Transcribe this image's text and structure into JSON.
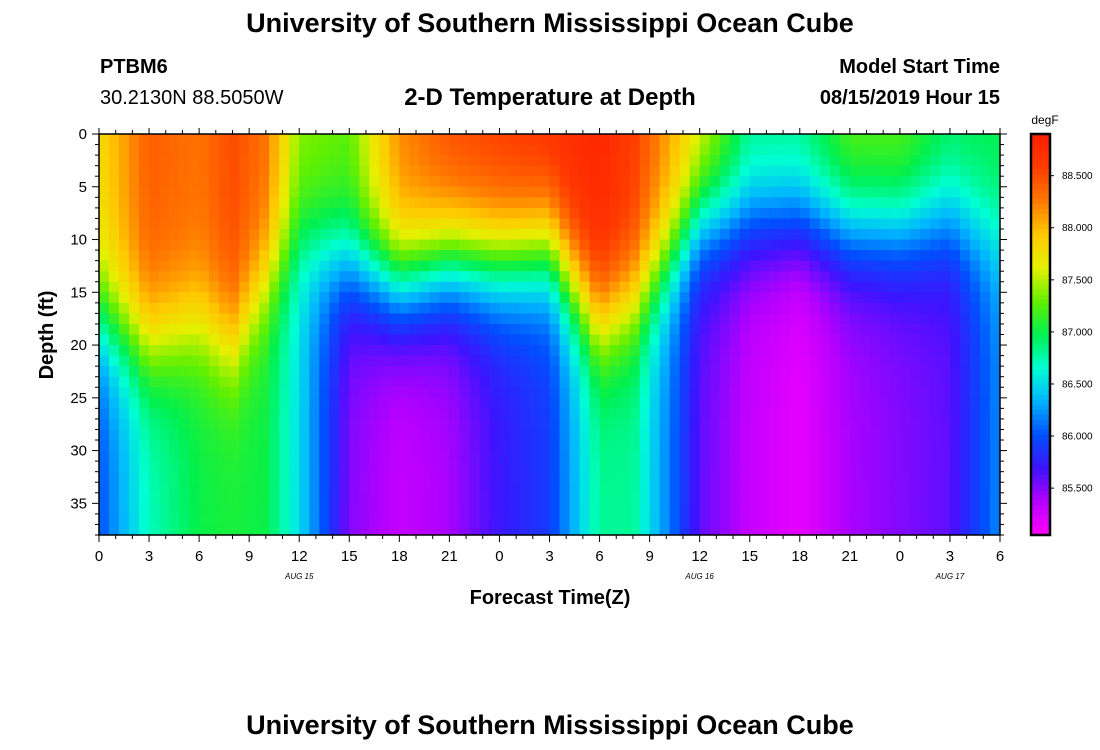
{
  "header": {
    "title": "University of Southern Mississippi Ocean Cube",
    "station_id": "PTBM6",
    "station_coords": "30.2130N 88.5050W",
    "model_start_label": "Model Start Time",
    "model_start_value": "08/15/2019 Hour 15"
  },
  "footer": {
    "title": "University of Southern Mississippi Ocean Cube"
  },
  "chart_data": {
    "type": "heatmap",
    "title": "2-D Temperature at Depth",
    "xlabel": "Forecast Time(Z)",
    "ylabel": "Depth (ft)",
    "x_ticks": [
      "0",
      "3",
      "6",
      "9",
      "12",
      "15",
      "18",
      "21",
      "0",
      "3",
      "6",
      "9",
      "12",
      "15",
      "18",
      "21",
      "0",
      "3",
      "6"
    ],
    "x_range_hours": [
      0,
      54
    ],
    "date_labels": [
      {
        "label": "AUG 15",
        "at_hour": 12
      },
      {
        "label": "AUG 16",
        "at_hour": 36
      },
      {
        "label": "AUG 17",
        "at_hour": 51
      }
    ],
    "y_ticks": [
      0,
      5,
      10,
      15,
      20,
      25,
      30,
      35
    ],
    "y_range_ft": [
      0,
      38
    ],
    "y_inverted": true,
    "colorbar": {
      "unit": "degF",
      "min": 85.05,
      "max": 88.9,
      "ticks": [
        "88.500",
        "88.000",
        "87.500",
        "87.000",
        "86.500",
        "86.000",
        "85.500"
      ],
      "colors": [
        "#ff00ff",
        "#b400ff",
        "#3c14ff",
        "#0050ff",
        "#00b4ff",
        "#00ffd2",
        "#00f050",
        "#64f000",
        "#e6f000",
        "#ffc800",
        "#ff7800",
        "#ff3c00",
        "#ff1e00"
      ]
    },
    "time_nodes_hours": [
      0,
      3,
      6,
      8,
      10,
      12,
      15,
      18,
      21,
      24,
      27,
      30,
      32,
      36,
      39,
      42,
      45,
      48,
      51,
      54
    ],
    "thermocline_depth_ft": [
      17,
      20,
      18,
      20,
      14,
      10,
      12,
      14,
      12,
      12,
      11,
      18,
      16,
      8,
      8,
      8,
      9,
      9,
      8,
      10
    ],
    "deep_min_temp_degF": [
      86.0,
      86.7,
      87.0,
      87.05,
      87.0,
      86.5,
      85.5,
      85.3,
      85.4,
      85.7,
      85.9,
      86.8,
      86.8,
      85.6,
      85.3,
      85.15,
      85.4,
      85.5,
      85.6,
      86.2
    ],
    "surface_temp_degF": [
      87.8,
      88.4,
      88.3,
      88.5,
      88.3,
      87.4,
      87.3,
      88.2,
      88.5,
      88.6,
      88.7,
      88.8,
      88.6,
      87.7,
      86.9,
      86.9,
      87.3,
      87.3,
      87.0,
      87.0
    ]
  }
}
